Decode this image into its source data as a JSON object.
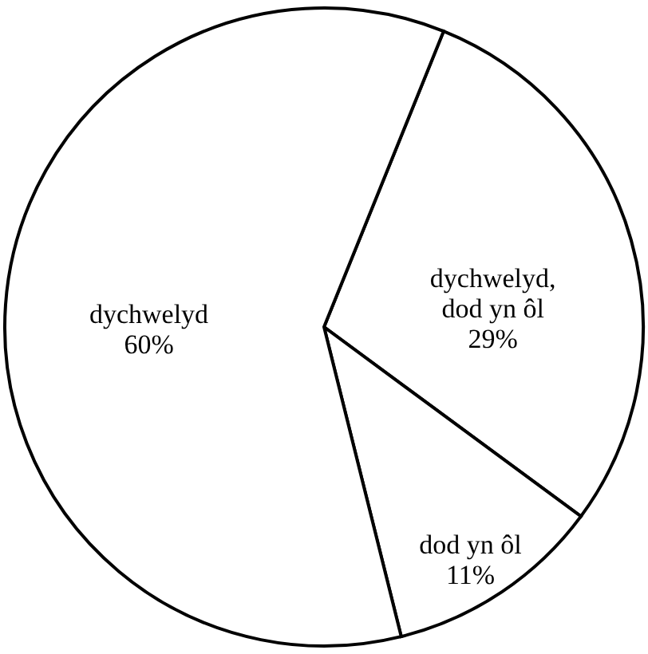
{
  "chart_data": {
    "type": "pie",
    "categories": [
      "dychwelyd, dod yn ôl",
      "dod yn ôl",
      "dychwelyd"
    ],
    "values": [
      29,
      11,
      60
    ],
    "colors": [
      "#ffffff",
      "#ffffff",
      "#ffffff"
    ],
    "value_labels": [
      "29%",
      "11%",
      "60%"
    ]
  }
}
